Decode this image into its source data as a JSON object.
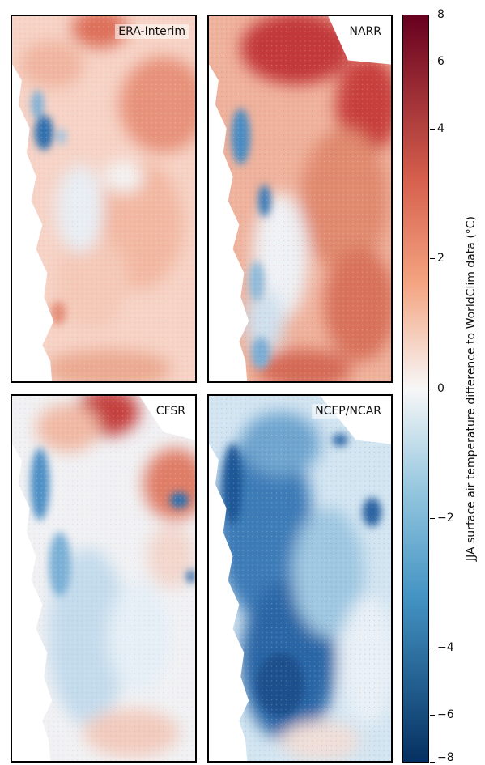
{
  "panels": [
    {
      "label": "ERA-Interim",
      "style": "warm-weak"
    },
    {
      "label": "NARR",
      "style": "warm-strong"
    },
    {
      "label": "CFSR",
      "style": "mixed"
    },
    {
      "label": "NCEP/NCAR",
      "style": "cold"
    }
  ],
  "colorbar": {
    "label": "JJA surface air temperature difference to WorldClim data (°C)",
    "min": -8,
    "max": 8,
    "ticks": [
      "8",
      "6",
      "4",
      "2",
      "0",
      "−2",
      "−4",
      "−6",
      "−8"
    ],
    "colors": {
      "darkest_red": "#67001f",
      "red": "#d6604d",
      "light_red": "#f4a582",
      "white": "#f7f7f7",
      "light_blue": "#92c5de",
      "blue": "#4393c3",
      "darkest_blue": "#053061"
    }
  }
}
